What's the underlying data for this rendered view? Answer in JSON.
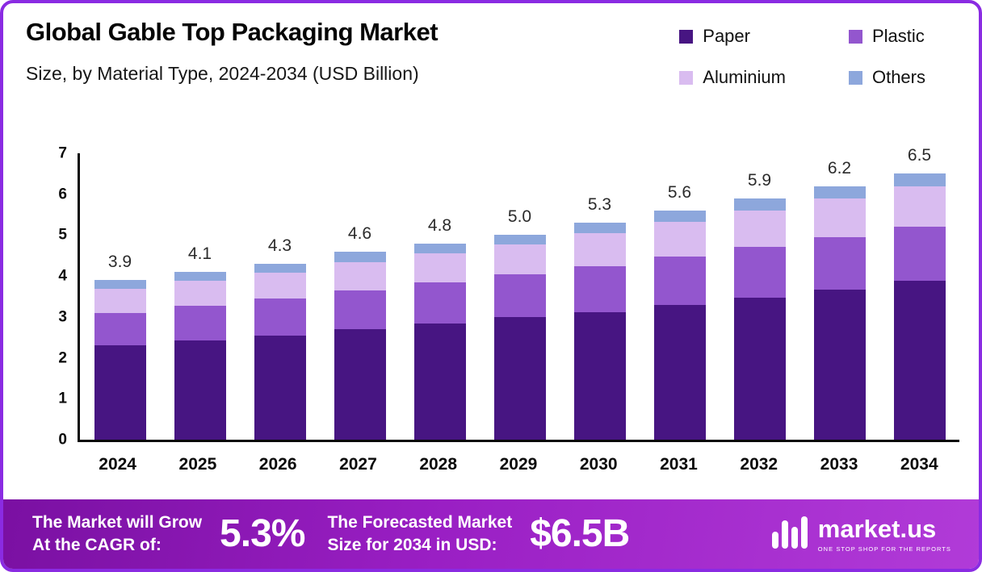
{
  "header": {
    "title": "Global Gable Top Packaging Market",
    "subtitle": "Size, by Material Type, 2024-2034 (USD Billion)"
  },
  "legend": [
    {
      "label": "Paper",
      "color": "#471582"
    },
    {
      "label": "Plastic",
      "color": "#9356ce"
    },
    {
      "label": "Aluminium",
      "color": "#d9bcf0"
    },
    {
      "label": "Others",
      "color": "#8da7dc"
    }
  ],
  "chart_data": {
    "type": "bar",
    "stacked": true,
    "title": "Global Gable Top Packaging Market Size, by Material Type, 2024-2034 (USD Billion)",
    "xlabel": "",
    "ylabel": "",
    "units": "USD Billion",
    "grid": false,
    "legend_position": "top-right",
    "ylim": [
      0,
      7
    ],
    "yticks": [
      0,
      1,
      2,
      3,
      4,
      5,
      6,
      7
    ],
    "categories": [
      "2024",
      "2025",
      "2026",
      "2027",
      "2028",
      "2029",
      "2030",
      "2031",
      "2032",
      "2033",
      "2034"
    ],
    "series": [
      {
        "name": "Paper",
        "color": "#471582",
        "values": [
          2.3,
          2.42,
          2.55,
          2.7,
          2.84,
          3.0,
          3.12,
          3.3,
          3.48,
          3.66,
          3.88
        ]
      },
      {
        "name": "Plastic",
        "color": "#9356ce",
        "values": [
          0.8,
          0.86,
          0.9,
          0.94,
          1.0,
          1.04,
          1.12,
          1.17,
          1.23,
          1.28,
          1.33
        ]
      },
      {
        "name": "Aluminium",
        "color": "#d9bcf0",
        "values": [
          0.58,
          0.61,
          0.64,
          0.7,
          0.72,
          0.74,
          0.8,
          0.86,
          0.9,
          0.96,
          0.99
        ]
      },
      {
        "name": "Others",
        "color": "#8da7dc",
        "values": [
          0.22,
          0.21,
          0.21,
          0.26,
          0.24,
          0.22,
          0.26,
          0.27,
          0.29,
          0.3,
          0.3
        ]
      }
    ],
    "totals": [
      3.9,
      4.1,
      4.3,
      4.6,
      4.8,
      5.0,
      5.3,
      5.6,
      5.9,
      6.2,
      6.5
    ],
    "total_labels": [
      "3.9",
      "4.1",
      "4.3",
      "4.6",
      "4.8",
      "5.0",
      "5.3",
      "5.6",
      "5.9",
      "6.2",
      "6.5"
    ]
  },
  "footer": {
    "cagr_label_line1": "The Market will Grow",
    "cagr_label_line2": "At the CAGR of:",
    "cagr_value": "5.3%",
    "forecast_label_line1": "The Forecasted Market",
    "forecast_label_line2": "Size for 2034 in USD:",
    "forecast_value": "$6.5B",
    "brand_name": "market.us",
    "brand_tagline": "ONE STOP SHOP FOR THE REPORTS"
  }
}
